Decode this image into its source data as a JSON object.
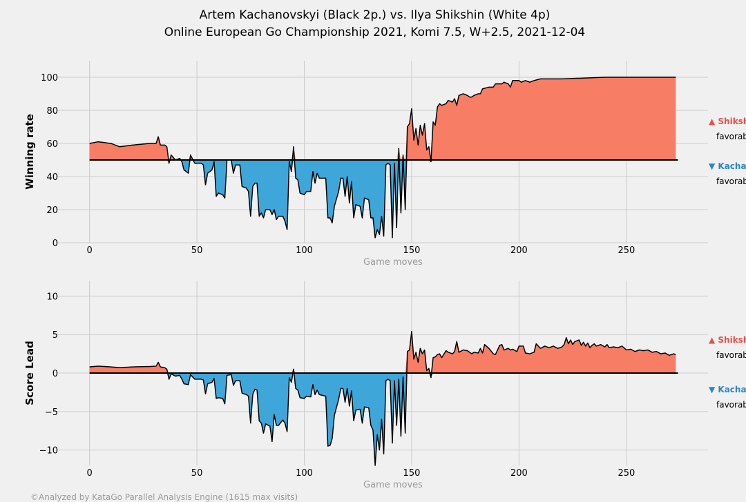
{
  "title_line1": "Artem Kachanovskyi (Black 2p.) vs. Ilya Shikshin (White 4p)",
  "title_line2": "Online European Go Championship 2021, Komi 7.5, W+2.5, 2021-12-04",
  "footer": "©Analyzed by KataGo Parallel Analysis Engine (1615 max visits)",
  "colors": {
    "white_fav": "#f77e65",
    "black_fav": "#3fa6da",
    "white_text": "#e5524a",
    "black_text": "#2f86be",
    "line": "#000000"
  },
  "chart_data": [
    {
      "type": "area",
      "ylabel": "Winning rate",
      "xlabel": "Game moves",
      "xlim": [
        -15,
        288
      ],
      "ylim": [
        0,
        110
      ],
      "baseline": 50,
      "xticks": [
        "0",
        "50",
        "100",
        "150",
        "200",
        "250"
      ],
      "yticks": [
        "0",
        "20",
        "40",
        "60",
        "80",
        "100"
      ],
      "legend": [
        {
          "label": "▲ Shikshin",
          "note": "favorable"
        },
        {
          "label": "▼ Kachanovskyi",
          "note": "favorable"
        }
      ],
      "knots": [
        [
          0,
          60
        ],
        [
          4,
          61
        ],
        [
          10,
          60
        ],
        [
          14,
          58
        ],
        [
          20,
          59
        ],
        [
          28,
          60
        ],
        [
          31,
          60
        ],
        [
          32,
          64
        ],
        [
          33,
          59
        ],
        [
          35,
          59
        ],
        [
          36,
          58
        ],
        [
          37,
          48
        ],
        [
          38,
          53
        ],
        [
          40,
          50
        ],
        [
          42,
          51
        ],
        [
          43,
          49
        ],
        [
          44,
          44
        ],
        [
          46,
          42
        ],
        [
          47,
          53
        ],
        [
          49,
          48
        ],
        [
          52,
          48
        ],
        [
          53,
          47
        ],
        [
          54,
          35
        ],
        [
          55,
          42
        ],
        [
          57,
          44
        ],
        [
          58,
          49
        ],
        [
          59,
          28
        ],
        [
          60,
          30
        ],
        [
          62,
          29
        ],
        [
          63,
          27
        ],
        [
          64,
          50
        ],
        [
          66,
          50
        ],
        [
          67,
          42
        ],
        [
          68,
          47
        ],
        [
          70,
          47
        ],
        [
          71,
          34
        ],
        [
          73,
          33
        ],
        [
          74,
          31
        ],
        [
          75,
          16
        ],
        [
          76,
          34
        ],
        [
          77,
          36
        ],
        [
          78,
          36
        ],
        [
          79,
          16
        ],
        [
          80,
          18
        ],
        [
          81,
          15
        ],
        [
          82,
          20
        ],
        [
          84,
          20
        ],
        [
          85,
          17
        ],
        [
          86,
          20
        ],
        [
          87,
          14
        ],
        [
          88,
          16
        ],
        [
          90,
          16
        ],
        [
          91,
          13
        ],
        [
          92,
          8
        ],
        [
          93,
          49
        ],
        [
          94,
          43
        ],
        [
          95,
          58
        ],
        [
          96,
          39
        ],
        [
          97,
          38
        ],
        [
          98,
          30
        ],
        [
          100,
          29
        ],
        [
          101,
          31
        ],
        [
          103,
          31
        ],
        [
          104,
          43
        ],
        [
          105,
          36
        ],
        [
          106,
          42
        ],
        [
          107,
          39
        ],
        [
          110,
          39
        ],
        [
          111,
          15
        ],
        [
          112,
          15
        ],
        [
          113,
          12
        ],
        [
          114,
          22
        ],
        [
          116,
          31
        ],
        [
          117,
          39
        ],
        [
          118,
          39
        ],
        [
          119,
          28
        ],
        [
          120,
          40
        ],
        [
          121,
          24
        ],
        [
          122,
          37
        ],
        [
          123,
          15
        ],
        [
          124,
          23
        ],
        [
          126,
          22
        ],
        [
          127,
          15
        ],
        [
          128,
          27
        ],
        [
          130,
          26
        ],
        [
          131,
          15
        ],
        [
          132,
          15
        ],
        [
          133,
          3
        ],
        [
          134,
          8
        ],
        [
          135,
          5
        ],
        [
          136,
          16
        ],
        [
          137,
          4
        ],
        [
          138,
          47
        ],
        [
          139,
          48
        ],
        [
          140,
          47
        ],
        [
          141,
          3
        ],
        [
          142,
          48
        ],
        [
          143,
          9
        ],
        [
          144,
          57
        ],
        [
          145,
          18
        ],
        [
          146,
          53
        ],
        [
          147,
          20
        ],
        [
          148,
          70
        ],
        [
          149,
          72
        ],
        [
          150,
          81
        ],
        [
          151,
          62
        ],
        [
          152,
          69
        ],
        [
          153,
          59
        ],
        [
          154,
          71
        ],
        [
          155,
          65
        ],
        [
          156,
          72
        ],
        [
          157,
          56
        ],
        [
          158,
          58
        ],
        [
          159,
          49
        ],
        [
          160,
          73
        ],
        [
          161,
          71
        ],
        [
          162,
          82
        ],
        [
          163,
          84
        ],
        [
          164,
          83
        ],
        [
          166,
          84
        ],
        [
          167,
          86
        ],
        [
          169,
          85
        ],
        [
          170,
          87
        ],
        [
          171,
          83
        ],
        [
          172,
          89
        ],
        [
          174,
          90
        ],
        [
          176,
          89
        ],
        [
          177,
          88
        ],
        [
          178,
          88
        ],
        [
          179,
          89
        ],
        [
          181,
          90
        ],
        [
          182,
          90
        ],
        [
          183,
          93
        ],
        [
          186,
          94
        ],
        [
          188,
          94
        ],
        [
          189,
          96
        ],
        [
          192,
          96
        ],
        [
          193,
          97
        ],
        [
          195,
          96
        ],
        [
          196,
          94
        ],
        [
          197,
          98
        ],
        [
          200,
          98
        ],
        [
          201,
          97
        ],
        [
          203,
          98
        ],
        [
          205,
          97
        ],
        [
          207,
          98
        ],
        [
          210,
          99
        ],
        [
          220,
          99
        ],
        [
          230,
          99.5
        ],
        [
          240,
          100
        ],
        [
          260,
          100
        ],
        [
          273,
          100
        ]
      ]
    },
    {
      "type": "area",
      "ylabel": "Score Lead",
      "xlabel": "Game moves",
      "xlim": [
        -15,
        288
      ],
      "ylim": [
        -12,
        12
      ],
      "baseline": 0,
      "xticks": [
        "0",
        "50",
        "100",
        "150",
        "200",
        "250"
      ],
      "yticks": [
        "−10",
        "−5",
        "0",
        "5",
        "10"
      ],
      "legend": [
        {
          "label": "▲ Shikshin",
          "note": "favorable"
        },
        {
          "label": "▼ Kachanovskyi",
          "note": "favorable"
        }
      ],
      "knots": [
        [
          0,
          0.8
        ],
        [
          4,
          0.9
        ],
        [
          10,
          0.8
        ],
        [
          14,
          0.7
        ],
        [
          20,
          0.8
        ],
        [
          28,
          0.85
        ],
        [
          31,
          0.9
        ],
        [
          32,
          1.4
        ],
        [
          33,
          0.8
        ],
        [
          35,
          0.7
        ],
        [
          36,
          0.5
        ],
        [
          37,
          -0.8
        ],
        [
          38,
          -0.1
        ],
        [
          40,
          -0.4
        ],
        [
          42,
          -0.3
        ],
        [
          43,
          -0.8
        ],
        [
          44,
          -1.4
        ],
        [
          46,
          -1.5
        ],
        [
          47,
          -0.2
        ],
        [
          49,
          -0.8
        ],
        [
          52,
          -0.8
        ],
        [
          53,
          -0.9
        ],
        [
          54,
          -2.7
        ],
        [
          55,
          -1.4
        ],
        [
          57,
          -1.2
        ],
        [
          58,
          -0.7
        ],
        [
          59,
          -3.3
        ],
        [
          60,
          -3.2
        ],
        [
          62,
          -3.3
        ],
        [
          63,
          -4.0
        ],
        [
          64,
          -0.3
        ],
        [
          66,
          -0.2
        ],
        [
          67,
          -1.6
        ],
        [
          68,
          -1.0
        ],
        [
          70,
          -1.0
        ],
        [
          71,
          -2.6
        ],
        [
          73,
          -2.8
        ],
        [
          74,
          -3.0
        ],
        [
          75,
          -6.5
        ],
        [
          76,
          -2.8
        ],
        [
          77,
          -2.1
        ],
        [
          78,
          -2.2
        ],
        [
          79,
          -6.2
        ],
        [
          80,
          -6.5
        ],
        [
          81,
          -7.8
        ],
        [
          82,
          -6.6
        ],
        [
          84,
          -6.9
        ],
        [
          85,
          -8.9
        ],
        [
          86,
          -5.4
        ],
        [
          87,
          -6.8
        ],
        [
          88,
          -6.8
        ],
        [
          90,
          -6.1
        ],
        [
          91,
          -6.5
        ],
        [
          92,
          -7.6
        ],
        [
          93,
          -0.6
        ],
        [
          94,
          -1.2
        ],
        [
          95,
          0.5
        ],
        [
          96,
          -2.0
        ],
        [
          97,
          -2.2
        ],
        [
          98,
          -3.2
        ],
        [
          100,
          -3.3
        ],
        [
          101,
          -3.0
        ],
        [
          103,
          -3.1
        ],
        [
          104,
          -1.5
        ],
        [
          105,
          -2.8
        ],
        [
          106,
          -2.2
        ],
        [
          107,
          -2.8
        ],
        [
          110,
          -3.0
        ],
        [
          111,
          -9.5
        ],
        [
          112,
          -9.4
        ],
        [
          113,
          -8.5
        ],
        [
          114,
          -5.5
        ],
        [
          116,
          -3.4
        ],
        [
          117,
          -2.0
        ],
        [
          118,
          -2.0
        ],
        [
          119,
          -3.8
        ],
        [
          120,
          -2.0
        ],
        [
          121,
          -4.3
        ],
        [
          122,
          -2.3
        ],
        [
          123,
          -6.2
        ],
        [
          124,
          -4.8
        ],
        [
          126,
          -4.7
        ],
        [
          127,
          -6.5
        ],
        [
          128,
          -4.4
        ],
        [
          130,
          -4.5
        ],
        [
          131,
          -6.8
        ],
        [
          132,
          -7.4
        ],
        [
          133,
          -12
        ],
        [
          134,
          -8.0
        ],
        [
          135,
          -10.0
        ],
        [
          136,
          -6.0
        ],
        [
          137,
          -10.5
        ],
        [
          138,
          -1.0
        ],
        [
          139,
          -0.8
        ],
        [
          140,
          -1.0
        ],
        [
          141,
          -9.1
        ],
        [
          142,
          -1.0
        ],
        [
          143,
          -6.8
        ],
        [
          144,
          -0.8
        ],
        [
          145,
          -8.2
        ],
        [
          146,
          -0.5
        ],
        [
          147,
          -7.8
        ],
        [
          148,
          2.8
        ],
        [
          149,
          3.0
        ],
        [
          150,
          5.4
        ],
        [
          151,
          1.8
        ],
        [
          152,
          2.7
        ],
        [
          153,
          1.4
        ],
        [
          154,
          3.2
        ],
        [
          155,
          2.5
        ],
        [
          156,
          3.0
        ],
        [
          157,
          0.3
        ],
        [
          158,
          0.6
        ],
        [
          159,
          -0.6
        ],
        [
          160,
          2.0
        ],
        [
          161,
          2.1
        ],
        [
          162,
          2.4
        ],
        [
          163,
          2.5
        ],
        [
          164,
          2.0
        ],
        [
          166,
          2.9
        ],
        [
          167,
          2.7
        ],
        [
          169,
          2.5
        ],
        [
          170,
          2.8
        ],
        [
          171,
          4.1
        ],
        [
          172,
          2.7
        ],
        [
          174,
          3.0
        ],
        [
          176,
          2.9
        ],
        [
          177,
          2.7
        ],
        [
          178,
          2.5
        ],
        [
          179,
          2.7
        ],
        [
          181,
          2.6
        ],
        [
          182,
          3.2
        ],
        [
          183,
          2.6
        ],
        [
          184,
          3.7
        ],
        [
          186,
          3.2
        ],
        [
          188,
          2.5
        ],
        [
          189,
          2.4
        ],
        [
          191,
          3.6
        ],
        [
          192,
          3.7
        ],
        [
          193,
          3.0
        ],
        [
          195,
          3.2
        ],
        [
          196,
          3.0
        ],
        [
          197,
          3.1
        ],
        [
          199,
          2.8
        ],
        [
          200,
          3.5
        ],
        [
          202,
          3.5
        ],
        [
          203,
          2.6
        ],
        [
          205,
          2.5
        ],
        [
          207,
          2.7
        ],
        [
          208,
          3.8
        ],
        [
          210,
          3.2
        ],
        [
          212,
          3.5
        ],
        [
          214,
          3.3
        ],
        [
          216,
          3.5
        ],
        [
          218,
          3.2
        ],
        [
          220,
          3.4
        ],
        [
          221,
          3.7
        ],
        [
          222,
          4.6
        ],
        [
          223,
          3.8
        ],
        [
          224,
          4.3
        ],
        [
          225,
          3.7
        ],
        [
          226,
          4.1
        ],
        [
          227,
          4.2
        ],
        [
          228,
          4.3
        ],
        [
          229,
          3.6
        ],
        [
          230,
          4.0
        ],
        [
          231,
          3.5
        ],
        [
          232,
          3.9
        ],
        [
          233,
          3.3
        ],
        [
          234,
          3.6
        ],
        [
          235,
          3.8
        ],
        [
          236,
          3.5
        ],
        [
          238,
          3.7
        ],
        [
          240,
          3.4
        ],
        [
          241,
          3.7
        ],
        [
          242,
          3.3
        ],
        [
          244,
          3.4
        ],
        [
          246,
          3.3
        ],
        [
          248,
          3.5
        ],
        [
          250,
          3.0
        ],
        [
          252,
          3.1
        ],
        [
          254,
          2.8
        ],
        [
          256,
          3.0
        ],
        [
          258,
          2.9
        ],
        [
          260,
          3.0
        ],
        [
          262,
          2.7
        ],
        [
          264,
          2.8
        ],
        [
          266,
          2.5
        ],
        [
          268,
          2.6
        ],
        [
          270,
          2.3
        ],
        [
          272,
          2.5
        ],
        [
          273,
          2.4
        ]
      ]
    }
  ]
}
